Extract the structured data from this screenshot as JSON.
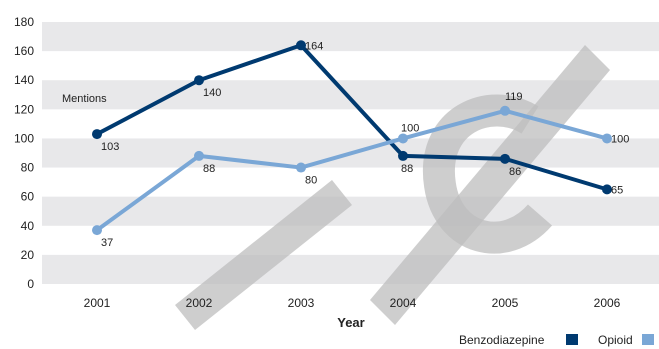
{
  "chart_data": {
    "type": "line",
    "x": [
      "2001",
      "2002",
      "2003",
      "2004",
      "2005",
      "2006"
    ],
    "xlabel": "Year",
    "ylabel": "Mentions",
    "ylim": [
      0,
      180
    ],
    "yticks": [
      0,
      20,
      40,
      60,
      80,
      100,
      120,
      140,
      160,
      180
    ],
    "grid": "alternating horizontal bands",
    "legend": "bottom-right",
    "series": [
      {
        "name": "Benzodiazepine",
        "color": "#003a70",
        "values": [
          103,
          140,
          164,
          88,
          86,
          65
        ]
      },
      {
        "name": "Opioid",
        "color": "#7aa7d6",
        "values": [
          37,
          88,
          80,
          100,
          119,
          100
        ]
      }
    ]
  },
  "colors": {
    "band": "#e8e8ea",
    "watermark": "#bdbdbd"
  }
}
